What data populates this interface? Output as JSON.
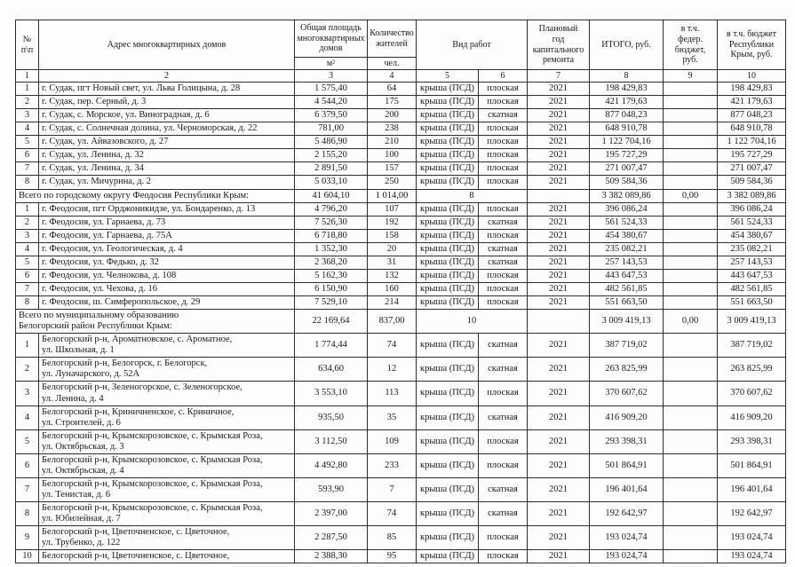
{
  "document": {
    "kind": "scanned-table-page",
    "colors": {
      "text": "#1a1a1a",
      "border": "#2e2e2e",
      "paper": "#fdfdfc"
    }
  },
  "table": {
    "header": {
      "no": "№\nп\\п",
      "address": "Адрес многоквартирных домов",
      "area": "Общая площадь\nмногоквартирных\nдомов",
      "area_unit": "м²",
      "residents": "Количество\nжителей",
      "residents_unit": "чел.",
      "work": "Вид работ",
      "year": "Плановый\nгод\nкапитального\nремонта",
      "total": "ИТОГО, руб.",
      "fed": "в т.ч.\nфедер.\nбюджет,\nруб.",
      "krym": "в т.ч. бюджет\nРеспублики\nКрым, руб.",
      "col_numbers": [
        "1",
        "2",
        "3",
        "4",
        "5",
        "6",
        "7",
        "8",
        "9",
        "10"
      ]
    },
    "rows": [
      {
        "type": "data",
        "num": "1",
        "address": [
          "г. Судак, пгт Новый свет, ул. Льва Голицына, д. 28"
        ],
        "area": "1 575,40",
        "residents": "64",
        "work": "крыша (ПСД)",
        "roof": "плоская",
        "year": "2021",
        "total": "198 429,83",
        "fed": "",
        "krym": "198 429,83"
      },
      {
        "type": "data",
        "num": "2",
        "address": [
          "г. Судак, пер. Серный, д. 3"
        ],
        "area": "4 544,20",
        "residents": "175",
        "work": "крыша (ПСД)",
        "roof": "плоская",
        "year": "2021",
        "total": "421 179,63",
        "fed": "",
        "krym": "421 179,63"
      },
      {
        "type": "data",
        "num": "3",
        "address": [
          "г. Судак, с. Морское, ул. Виноградная, д. 6"
        ],
        "area": "6 379,50",
        "residents": "200",
        "work": "крыша (ПСД)",
        "roof": "скатная",
        "year": "2021",
        "total": "877 048,23",
        "fed": "",
        "krym": "877 048,23"
      },
      {
        "type": "data",
        "num": "4",
        "address": [
          "г. Судак, с. Солнечная долина, ул. Черноморская, д. 22"
        ],
        "area": "781,00",
        "residents": "238",
        "work": "крыша (ПСД)",
        "roof": "плоская",
        "year": "2021",
        "total": "648 910,78",
        "fed": "",
        "krym": "648 910,78"
      },
      {
        "type": "data",
        "num": "5",
        "address": [
          "г. Судак, ул. Айвазовского, д. 27"
        ],
        "area": "5 486,90",
        "residents": "210",
        "work": "крыша (ПСД)",
        "roof": "плоская",
        "year": "2021",
        "total": "1 122 704,16",
        "fed": "",
        "krym": "1 122 704,16"
      },
      {
        "type": "data",
        "num": "6",
        "address": [
          "г. Судак, ул. Ленина, д. 32"
        ],
        "area": "2 155,20",
        "residents": "100",
        "work": "крыша (ПСД)",
        "roof": "плоская",
        "year": "2021",
        "total": "195 727,29",
        "fed": "",
        "krym": "195 727,29"
      },
      {
        "type": "data",
        "num": "7",
        "address": [
          "г. Судак, ул. Ленина, д. 34"
        ],
        "area": "2 891,50",
        "residents": "157",
        "work": "крыша (ПСД)",
        "roof": "плоская",
        "year": "2021",
        "total": "271 007,47",
        "fed": "",
        "krym": "271 007,47"
      },
      {
        "type": "data",
        "num": "8",
        "address": [
          "г. Судак, ул. Мичурина, д. 2"
        ],
        "area": "5 033,10",
        "residents": "250",
        "work": "крыша (ПСД)",
        "roof": "плоская",
        "year": "2021",
        "total": "509 584,36",
        "fed": "",
        "krym": "509 584,36"
      },
      {
        "type": "total",
        "label": [
          "Всего по городскому округу Феодосия Республики Крым:"
        ],
        "area": "41 604,10",
        "residents": "1 014,00",
        "count": "8",
        "year": "",
        "total": "3 382 089,86",
        "fed": "0,00",
        "krym": "3 382 089,86"
      },
      {
        "type": "data",
        "num": "1",
        "address": [
          "г. Феодосия, пгт Орджоникидзе, ул. Бондаренко, д. 13"
        ],
        "area": "4 796,20",
        "residents": "107",
        "work": "крыша (ПСД)",
        "roof": "плоская",
        "year": "2021",
        "total": "396 086,24",
        "fed": "",
        "krym": "396 086,24"
      },
      {
        "type": "data",
        "num": "2",
        "address": [
          "г. Феодосия, ул. Гарнаева, д. 73"
        ],
        "area": "7 526,30",
        "residents": "192",
        "work": "крыша (ПСД)",
        "roof": "скатная",
        "year": "2021",
        "total": "561 524,33",
        "fed": "",
        "krym": "561 524,33"
      },
      {
        "type": "data",
        "num": "3",
        "address": [
          "г. Феодосия, ул. Гарнаева, д. 75А"
        ],
        "area": "6 718,80",
        "residents": "158",
        "work": "крыша (ПСД)",
        "roof": "плоская",
        "year": "2021",
        "total": "454 380,67",
        "fed": "",
        "krym": "454 380,67"
      },
      {
        "type": "data",
        "num": "4",
        "address": [
          "г. Феодосия, ул. Геологическая, д. 4"
        ],
        "area": "1 352,30",
        "residents": "20",
        "work": "крыша (ПСД)",
        "roof": "скатная",
        "year": "2021",
        "total": "235 082,21",
        "fed": "",
        "krym": "235 082,21"
      },
      {
        "type": "data",
        "num": "5",
        "address": [
          "г. Феодосия, ул. Федько, д. 32"
        ],
        "area": "2 368,20",
        "residents": "31",
        "work": "крыша (ПСД)",
        "roof": "скатная",
        "year": "2021",
        "total": "257 143,53",
        "fed": "",
        "krym": "257 143,53"
      },
      {
        "type": "data",
        "num": "6",
        "address": [
          "г. Феодосия, ул. Челнокова, д. 108"
        ],
        "area": "5 162,30",
        "residents": "132",
        "work": "крыша (ПСД)",
        "roof": "плоская",
        "year": "2021",
        "total": "443 647,53",
        "fed": "",
        "krym": "443 647,53"
      },
      {
        "type": "data",
        "num": "7",
        "address": [
          "г. Феодосия, ул. Чехова, д. 16"
        ],
        "area": "6 150,90",
        "residents": "160",
        "work": "крыша (ПСД)",
        "roof": "плоская",
        "year": "2021",
        "total": "482 561,85",
        "fed": "",
        "krym": "482 561,85"
      },
      {
        "type": "data",
        "num": "8",
        "address": [
          "г. Феодосия, ш. Симферопольское, д. 29"
        ],
        "area": "7 529,10",
        "residents": "214",
        "work": "крыша (ПСД)",
        "roof": "плоская",
        "year": "2021",
        "total": "551 663,50",
        "fed": "",
        "krym": "551 663,50"
      },
      {
        "type": "total",
        "label": [
          "Всего по муниципальному образованию",
          "Белогорский район Республики Крым:"
        ],
        "area": "22 169,64",
        "residents": "837,00",
        "count": "10",
        "year": "",
        "total": "3 009 419,13",
        "fed": "0,00",
        "krym": "3 009 419,13"
      },
      {
        "type": "data",
        "num": "1",
        "address": [
          "Белогорский р-н, Ароматновское, с. Ароматное,",
          "ул. Школьная, д. 1"
        ],
        "area": "1 774,44",
        "residents": "74",
        "work": "крыша (ПСД)",
        "roof": "скатная",
        "year": "2021",
        "total": "387 719,02",
        "fed": "",
        "krym": "387 719,02"
      },
      {
        "type": "data",
        "num": "2",
        "address": [
          "Белогорский р-н, Белогорск, г. Белогорск,",
          "ул. Луначарского, д. 52А"
        ],
        "area": "634,60",
        "residents": "12",
        "work": "крыша (ПСД)",
        "roof": "скатная",
        "year": "2021",
        "total": "263 825,99",
        "fed": "",
        "krym": "263 825,99"
      },
      {
        "type": "data",
        "num": "3",
        "address": [
          "Белогорский р-н, Зеленогорское, с. Зеленогорское,",
          "ул. Ленина, д. 4"
        ],
        "area": "3 553,10",
        "residents": "113",
        "work": "крыша (ПСД)",
        "roof": "плоская",
        "year": "2021",
        "total": "370 607,62",
        "fed": "",
        "krym": "370 607,62"
      },
      {
        "type": "data",
        "num": "4",
        "address": [
          "Белогорский р-н, Криничненское, с. Криничное,",
          "ул. Строителей, д. 6"
        ],
        "area": "935,50",
        "residents": "35",
        "work": "крыша (ПСД)",
        "roof": "скатная",
        "year": "2021",
        "total": "416 909,20",
        "fed": "",
        "krym": "416 909,20"
      },
      {
        "type": "data",
        "num": "5",
        "address": [
          "Белогорский р-н, Крымскорозовское, с. Крымская Роза,",
          "ул. Октябрьская, д. 3"
        ],
        "area": "3 112,50",
        "residents": "109",
        "work": "крыша (ПСД)",
        "roof": "плоская",
        "year": "2021",
        "total": "293 398,31",
        "fed": "",
        "krym": "293 398,31"
      },
      {
        "type": "data",
        "num": "6",
        "address": [
          "Белогорский р-н, Крымскорозовское, с. Крымская Роза,",
          "ул. Октябрьская, д. 4"
        ],
        "area": "4 492,80",
        "residents": "233",
        "work": "крыша (ПСД)",
        "roof": "плоская",
        "year": "2021",
        "total": "501 864,91",
        "fed": "",
        "krym": "501 864,91"
      },
      {
        "type": "data",
        "num": "7",
        "address": [
          "Белогорский р-н, Крымскорозовское, с. Крымская Роза,",
          "ул. Тенистая, д. 6"
        ],
        "area": "593,90",
        "residents": "7",
        "work": "крыша (ПСД)",
        "roof": "скатная",
        "year": "2021",
        "total": "196 401,64",
        "fed": "",
        "krym": "196 401,64"
      },
      {
        "type": "data",
        "num": "8",
        "address": [
          "Белогорский р-н, Крымскорозовское, с. Крымская Роза,",
          "ул. Юбилейная, д. 7"
        ],
        "area": "2 397,00",
        "residents": "74",
        "work": "крыша (ПСД)",
        "roof": "скатная",
        "year": "2021",
        "total": "192 642,97",
        "fed": "",
        "krym": "192 642,97"
      },
      {
        "type": "data",
        "num": "9",
        "address": [
          "Белогорский р-н, Цветочненское, с. Цветочное,",
          "ул. Трубенко, д. 122"
        ],
        "area": "2 287,50",
        "residents": "85",
        "work": "крыша (ПСД)",
        "roof": "плоская",
        "year": "2021",
        "total": "193 024,74",
        "fed": "",
        "krym": "193 024,74"
      },
      {
        "type": "data",
        "num": "10",
        "address": [
          "Белогорский р-н, Цветочненское, с. Цветочное,"
        ],
        "area": "2 388,30",
        "residents": "95",
        "work": "крыша (ПСД)",
        "roof": "плоская",
        "year": "2021",
        "total": "193 024,74",
        "fed": "",
        "krym": "193 024,74"
      }
    ]
  }
}
